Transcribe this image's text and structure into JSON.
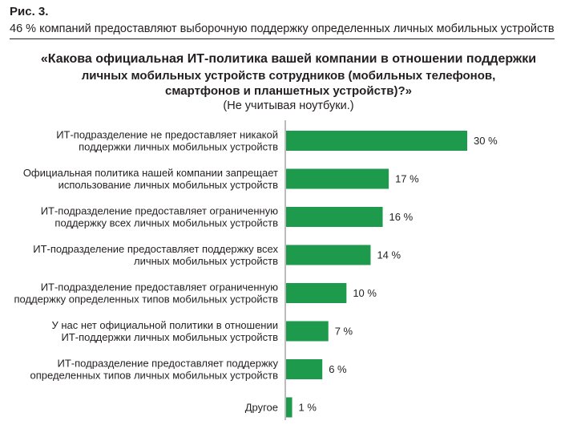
{
  "figure_label": "Рис. 3.",
  "figure_subtitle": "46 % компаний предоставляют выборочную поддержку определенных личных мобильных устройств",
  "chart_data": {
    "type": "bar",
    "orientation": "horizontal",
    "title_lines": [
      "«Какова официальная ИТ-политика вашей компании в отношении поддержки",
      "личных мобильных устройств сотрудников (мобильных телефонов,",
      "смартфонов и планшетных устройств)?»"
    ],
    "subtitle": "(Не учитывая ноутбуки.)",
    "categories": [
      [
        "ИТ-подразделение не предоставляет никакой",
        "поддержки личных мобильных устройств"
      ],
      [
        "Официальная политика нашей компании запрещает",
        "использование личных мобильных устройств"
      ],
      [
        "ИТ-подразделение предоставляет ограниченную",
        "поддержку всех личных мобильных устройств"
      ],
      [
        "ИТ-подразделение предоставляет поддержку всех",
        "личных мобильных устройств"
      ],
      [
        "ИТ-подразделение предоставляет ограниченную",
        "поддержку определенных типов мобильных устройств"
      ],
      [
        "У нас нет официальной политики в отношении",
        "ИТ-поддержки личных мобильных устройств"
      ],
      [
        "ИТ-подразделение предоставляет поддержку",
        "определенных типов личных мобильных устройств"
      ],
      [
        "Другое"
      ]
    ],
    "values": [
      30,
      17,
      16,
      14,
      10,
      7,
      6,
      1
    ],
    "value_labels": [
      "30 %",
      "17 %",
      "16 %",
      "14 %",
      "10 %",
      "7 %",
      "6 %",
      "1 %"
    ],
    "unit": "%",
    "xlim": [
      0,
      30
    ],
    "bar_color": "#1e9a4c",
    "grid": false
  }
}
